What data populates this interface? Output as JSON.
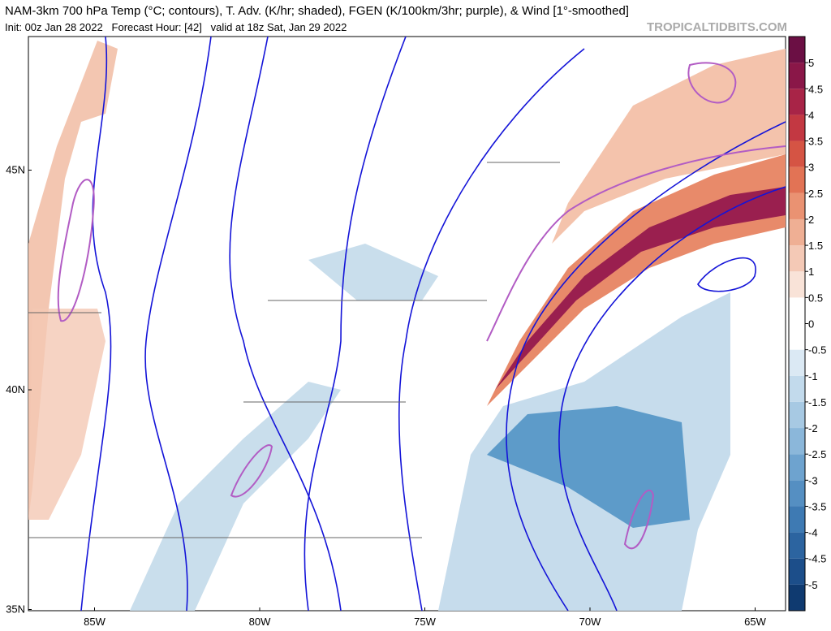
{
  "header": {
    "title": "NAM-3km 700 hPa Temp (°C; contours), T. Adv. (K/hr; shaded), FGEN (K/100km/3hr; purple), & Wind [1°-smoothed]",
    "subtitle": "Init: 00z Jan 28 2022   Forecast Hour: [42]   valid at 18z Sat, Jan 29 2022",
    "watermark": "TROPICALTIDBITS.COM"
  },
  "map": {
    "lat_ticks": [
      {
        "value": 45,
        "label": "45N"
      },
      {
        "value": 40,
        "label": "40N"
      },
      {
        "value": 35,
        "label": "35N"
      }
    ],
    "lon_ticks": [
      {
        "value": -85,
        "label": "85W"
      },
      {
        "value": -80,
        "label": "80W"
      },
      {
        "value": -75,
        "label": "75W"
      },
      {
        "value": -70,
        "label": "70W"
      },
      {
        "value": -65,
        "label": "65W"
      }
    ]
  },
  "colorbar": {
    "lim": [
      -5.5,
      5.5
    ],
    "ticks": [
      5,
      4.5,
      4,
      3.5,
      3,
      2.5,
      2,
      1.5,
      1,
      0.5,
      0,
      -0.5,
      -1,
      -1.5,
      -2,
      -2.5,
      -3,
      -3.5,
      -4,
      -4.5,
      -5
    ]
  }
}
